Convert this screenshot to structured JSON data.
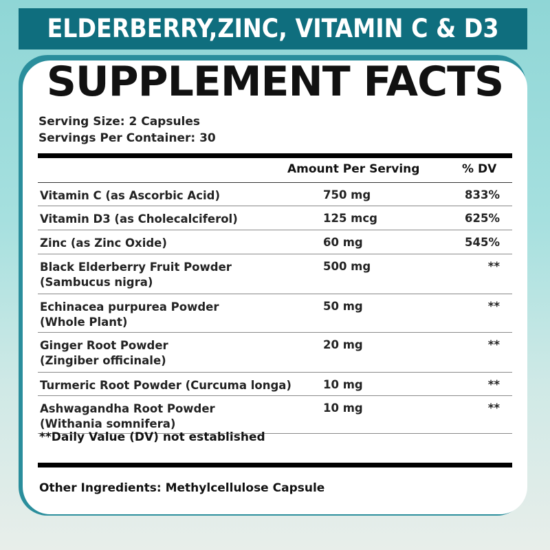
{
  "banner": "ELDERBERRY,ZINC, VITAMIN C & D3",
  "title": "SUPPLEMENT FACTS",
  "serving_size": "Serving Size: 2 Capsules",
  "servings_per_container": "Servings Per Container: 30",
  "header": {
    "amount": "Amount Per Serving",
    "dv": "% DV"
  },
  "rows": [
    {
      "name": "Vitamin C (as Ascorbic Acid)",
      "amount": "750 mg",
      "dv": "833%"
    },
    {
      "name": "Vitamin D3 (as Cholecalciferol)",
      "amount": "125 mcg",
      "dv": "625%"
    },
    {
      "name": "Zinc (as Zinc Oxide)",
      "amount": "60 mg",
      "dv": "545%"
    },
    {
      "name": "Black Elderberry Fruit Powder\n(Sambucus nigra)",
      "amount": "500 mg",
      "dv": "**"
    },
    {
      "name": "Echinacea purpurea Powder\n(Whole Plant)",
      "amount": "50 mg",
      "dv": "**"
    },
    {
      "name": "Ginger Root Powder\n(Zingiber officinale)",
      "amount": "20 mg",
      "dv": "**"
    },
    {
      "name": "Turmeric Root Powder (Curcuma longa)",
      "amount": "10 mg",
      "dv": "**"
    },
    {
      "name": "Ashwagandha Root Powder\n(Withania somnifera)",
      "amount": "10 mg",
      "dv": "**"
    }
  ],
  "footnote": "**Daily Value (DV) not established",
  "other_ingredients": "Other Ingredients: Methylcellulose Capsule",
  "colors": {
    "banner": "#0f6e7e",
    "card_border": "#2a8e9c"
  }
}
